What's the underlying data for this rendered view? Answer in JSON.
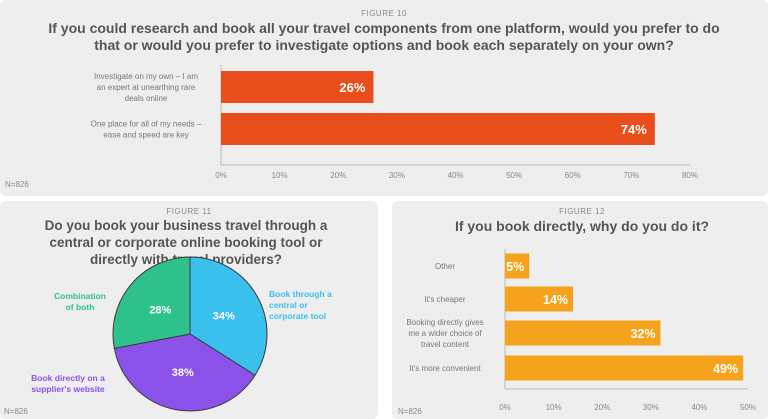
{
  "colors": {
    "red": "#e84e1b",
    "orange": "#f5a31c",
    "green": "#2fc18c",
    "blue": "#39c0ec",
    "purple": "#8a52e8"
  },
  "chart_data": [
    {
      "type": "bar",
      "figure_label": "FIGURE 10",
      "title_lines": [
        "If you could research and book all your travel components from one platform, would you prefer to do",
        "that or would you prefer to investigate options and book each separately on your own?"
      ],
      "categories": [
        [
          "Investigate on my own – I am",
          "an expert at unearthing rare",
          "deals online"
        ],
        [
          "One place for all of my needs –",
          "ease and speed are key"
        ]
      ],
      "values": [
        26,
        74
      ],
      "value_labels": [
        "26%",
        "74%"
      ],
      "xlim": [
        0,
        80
      ],
      "ticks": [
        "0%",
        "10%",
        "20%",
        "30%",
        "40%",
        "50%",
        "60%",
        "70%",
        "80%"
      ],
      "note": "N=826"
    },
    {
      "type": "pie",
      "figure_label": "FIGURE 11",
      "title_lines": [
        "Do you book your business travel through a",
        "central or corporate online booking tool or",
        "directly with travel providers?"
      ],
      "slices": [
        {
          "label_lines": [
            "Book through a",
            "central or",
            "corporate tool"
          ],
          "value": 34,
          "value_label": "34%"
        },
        {
          "label_lines": [
            "Book directly on a",
            "supplier's website"
          ],
          "value": 38,
          "value_label": "38%"
        },
        {
          "label_lines": [
            "Combination",
            "of both"
          ],
          "value": 28,
          "value_label": "28%"
        }
      ],
      "note": "N=826"
    },
    {
      "type": "bar",
      "figure_label": "FIGURE 12",
      "title_lines": [
        "If you book directly, why do you do it?"
      ],
      "categories": [
        [
          "Other"
        ],
        [
          "It's cheaper"
        ],
        [
          "Booking directly gives",
          "me a wider choice of",
          "travel content"
        ],
        [
          "It's more convenient"
        ]
      ],
      "values": [
        5,
        14,
        32,
        49
      ],
      "value_labels": [
        "5%",
        "14%",
        "32%",
        "49%"
      ],
      "xlim": [
        0,
        50
      ],
      "ticks": [
        "0%",
        "10%",
        "20%",
        "30%",
        "40%",
        "50%"
      ],
      "note": "N=826"
    }
  ]
}
